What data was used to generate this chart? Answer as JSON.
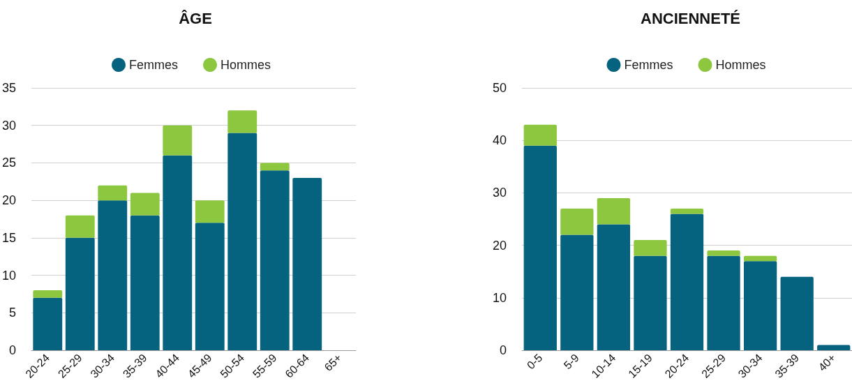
{
  "chart_data": [
    {
      "type": "bar",
      "title": "ÂGE",
      "categories": [
        "20-24",
        "25-29",
        "30-34",
        "35-39",
        "40-44",
        "45-49",
        "50-54",
        "55-59",
        "60-64",
        "65+"
      ],
      "stacked": true,
      "series": [
        {
          "name": "Femmes",
          "color": "#05637f",
          "values": [
            7,
            15,
            20,
            18,
            26,
            17,
            29,
            24,
            23,
            0
          ]
        },
        {
          "name": "Hommes",
          "color": "#8dc63f",
          "values": [
            1,
            3,
            2,
            3,
            4,
            3,
            3,
            1,
            0,
            0
          ]
        }
      ],
      "ylim": [
        0,
        35
      ],
      "yticks": [
        0,
        5,
        10,
        15,
        20,
        25,
        30,
        35
      ],
      "grid": "y",
      "legend": "top"
    },
    {
      "type": "bar",
      "title": "ANCIENNETÉ",
      "categories": [
        "0-5",
        "5-9",
        "10-14",
        "15-19",
        "20-24",
        "25-29",
        "30-34",
        "35-39",
        "40+"
      ],
      "stacked": true,
      "series": [
        {
          "name": "Femmes",
          "color": "#05637f",
          "values": [
            39,
            22,
            24,
            18,
            26,
            18,
            17,
            14,
            1
          ]
        },
        {
          "name": "Hommes",
          "color": "#8dc63f",
          "values": [
            4,
            5,
            5,
            3,
            1,
            1,
            1,
            0,
            0
          ]
        }
      ],
      "ylim": [
        0,
        50
      ],
      "yticks": [
        0,
        10,
        20,
        30,
        40,
        50
      ],
      "grid": "y",
      "legend": "top"
    }
  ]
}
